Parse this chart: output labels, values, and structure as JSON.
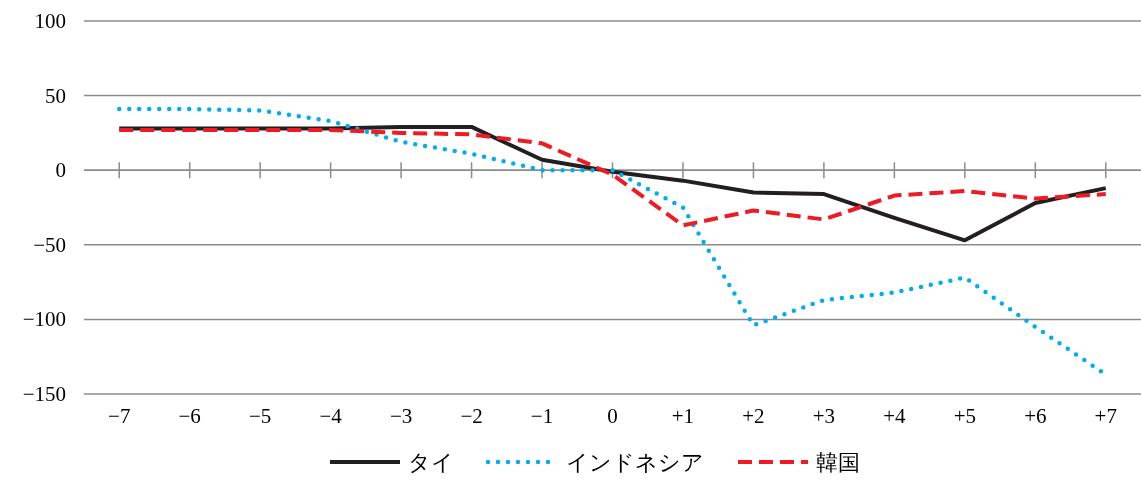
{
  "chart_data": {
    "type": "line",
    "categories": [
      "−7",
      "−6",
      "−5",
      "−4",
      "−3",
      "−2",
      "−1",
      "0",
      "+1",
      "+2",
      "+3",
      "+4",
      "+5",
      "+6",
      "+7"
    ],
    "series": [
      {
        "name": "タイ",
        "color": "#231f20",
        "line_style": "solid",
        "values": [
          28,
          28,
          28,
          28,
          29,
          29,
          7,
          -1,
          -7,
          -15,
          -16,
          -32,
          -47,
          -22,
          -12
        ]
      },
      {
        "name": "インドネシア",
        "color": "#00aeef",
        "line_style": "dotted",
        "values": [
          41,
          41,
          40,
          33,
          19,
          11,
          0,
          0,
          -25,
          -104,
          -87,
          -82,
          -72,
          -105,
          -137
        ]
      },
      {
        "name": "韓国",
        "color": "#ed1c24",
        "line_style": "dashed",
        "values": [
          27,
          27,
          27,
          27,
          25,
          24,
          18,
          -3,
          -37,
          -27,
          -33,
          -17,
          -14,
          -19,
          -16
        ]
      }
    ],
    "ylim": [
      -150,
      100
    ],
    "yticks": [
      {
        "value": -150,
        "label": "−150"
      },
      {
        "value": -100,
        "label": "−100"
      },
      {
        "value": -50,
        "label": "−50"
      },
      0,
      50,
      100
    ],
    "grid": "y",
    "legend": "bottom",
    "marker": "none"
  }
}
